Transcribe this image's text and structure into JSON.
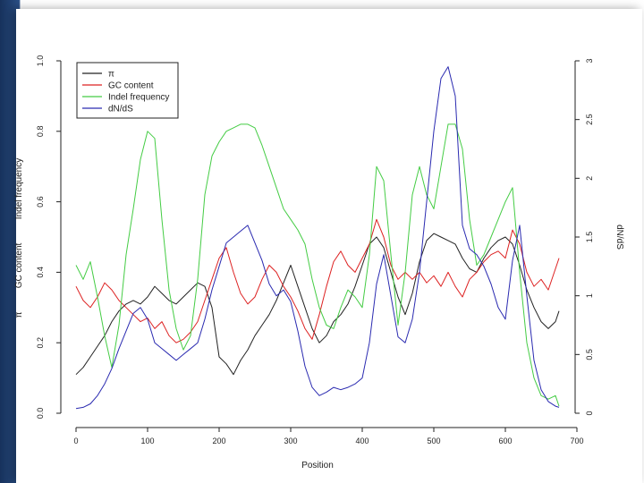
{
  "chart_data": {
    "type": "line",
    "title": "",
    "xlabel": "Position",
    "ylabel_left": [
      "π",
      "GC content",
      "Indel frequency"
    ],
    "ylabel_right": "dN/dS",
    "xlim": [
      0,
      700
    ],
    "ylim_left": [
      0,
      1
    ],
    "ylim_right": [
      0,
      3
    ],
    "x_ticks": [
      0,
      100,
      200,
      300,
      400,
      500,
      600,
      700
    ],
    "y_left_ticks": [
      "0.0",
      "0.2",
      "0.4",
      "0.6",
      "0.8",
      "1.0"
    ],
    "y_right_ticks": [
      "0",
      "0.5",
      "1",
      "1.5",
      "2",
      "2.5",
      "3"
    ],
    "legend_position": "top-left",
    "series": [
      {
        "name": "π",
        "axis": "left",
        "color": "#222222",
        "x": [
          0,
          10,
          20,
          30,
          40,
          50,
          60,
          70,
          80,
          90,
          100,
          110,
          120,
          130,
          140,
          150,
          160,
          170,
          180,
          190,
          200,
          210,
          220,
          230,
          240,
          250,
          260,
          270,
          280,
          290,
          300,
          310,
          320,
          330,
          340,
          350,
          360,
          370,
          380,
          390,
          400,
          410,
          420,
          430,
          440,
          450,
          460,
          470,
          480,
          490,
          500,
          510,
          520,
          530,
          540,
          550,
          560,
          570,
          580,
          590,
          600,
          610,
          620,
          630,
          640,
          650,
          660,
          670,
          675
        ],
        "y": [
          0.11,
          0.13,
          0.16,
          0.19,
          0.22,
          0.26,
          0.29,
          0.31,
          0.32,
          0.31,
          0.33,
          0.36,
          0.34,
          0.32,
          0.31,
          0.33,
          0.35,
          0.37,
          0.36,
          0.3,
          0.16,
          0.14,
          0.11,
          0.15,
          0.18,
          0.22,
          0.25,
          0.28,
          0.32,
          0.37,
          0.42,
          0.36,
          0.3,
          0.24,
          0.2,
          0.22,
          0.26,
          0.28,
          0.31,
          0.36,
          0.42,
          0.48,
          0.5,
          0.47,
          0.4,
          0.33,
          0.28,
          0.34,
          0.43,
          0.49,
          0.51,
          0.5,
          0.49,
          0.48,
          0.44,
          0.41,
          0.4,
          0.44,
          0.47,
          0.49,
          0.5,
          0.48,
          0.42,
          0.35,
          0.3,
          0.26,
          0.24,
          0.26,
          0.29
        ]
      },
      {
        "name": "GC content",
        "axis": "left",
        "color": "#dd2222",
        "x": [
          0,
          10,
          20,
          30,
          40,
          50,
          60,
          70,
          80,
          90,
          100,
          110,
          120,
          130,
          140,
          150,
          160,
          170,
          180,
          190,
          200,
          210,
          220,
          230,
          240,
          250,
          260,
          270,
          280,
          290,
          300,
          310,
          320,
          330,
          340,
          350,
          360,
          370,
          380,
          390,
          400,
          410,
          420,
          430,
          440,
          450,
          460,
          470,
          480,
          490,
          500,
          510,
          520,
          530,
          540,
          550,
          560,
          570,
          580,
          590,
          600,
          610,
          620,
          630,
          640,
          650,
          660,
          670,
          675
        ],
        "y": [
          0.36,
          0.32,
          0.3,
          0.33,
          0.37,
          0.35,
          0.32,
          0.3,
          0.28,
          0.26,
          0.27,
          0.24,
          0.26,
          0.22,
          0.2,
          0.21,
          0.23,
          0.26,
          0.32,
          0.38,
          0.44,
          0.47,
          0.4,
          0.34,
          0.31,
          0.33,
          0.38,
          0.42,
          0.4,
          0.36,
          0.33,
          0.29,
          0.24,
          0.21,
          0.28,
          0.36,
          0.43,
          0.46,
          0.42,
          0.4,
          0.44,
          0.48,
          0.55,
          0.5,
          0.42,
          0.38,
          0.4,
          0.38,
          0.4,
          0.37,
          0.39,
          0.36,
          0.4,
          0.36,
          0.33,
          0.38,
          0.4,
          0.43,
          0.45,
          0.46,
          0.44,
          0.52,
          0.48,
          0.4,
          0.36,
          0.38,
          0.35,
          0.41,
          0.44
        ]
      },
      {
        "name": "Indel frequency",
        "axis": "left",
        "color": "#44cc44",
        "x": [
          0,
          10,
          20,
          30,
          40,
          50,
          60,
          70,
          80,
          90,
          100,
          110,
          120,
          130,
          140,
          150,
          160,
          170,
          180,
          190,
          200,
          210,
          220,
          230,
          240,
          250,
          260,
          270,
          280,
          290,
          300,
          310,
          320,
          330,
          340,
          350,
          360,
          370,
          380,
          390,
          400,
          410,
          420,
          430,
          440,
          450,
          460,
          470,
          480,
          490,
          500,
          510,
          520,
          530,
          540,
          550,
          560,
          570,
          580,
          590,
          600,
          610,
          620,
          630,
          640,
          650,
          660,
          670,
          675
        ],
        "y": [
          0.42,
          0.38,
          0.43,
          0.33,
          0.22,
          0.13,
          0.25,
          0.45,
          0.58,
          0.72,
          0.8,
          0.78,
          0.55,
          0.35,
          0.24,
          0.18,
          0.22,
          0.38,
          0.62,
          0.73,
          0.77,
          0.8,
          0.81,
          0.82,
          0.82,
          0.81,
          0.76,
          0.7,
          0.64,
          0.58,
          0.55,
          0.52,
          0.48,
          0.38,
          0.3,
          0.25,
          0.24,
          0.3,
          0.35,
          0.33,
          0.3,
          0.45,
          0.7,
          0.66,
          0.45,
          0.25,
          0.4,
          0.62,
          0.7,
          0.62,
          0.58,
          0.7,
          0.82,
          0.82,
          0.75,
          0.55,
          0.42,
          0.45,
          0.5,
          0.55,
          0.6,
          0.64,
          0.4,
          0.2,
          0.1,
          0.05,
          0.04,
          0.05,
          0.02
        ]
      },
      {
        "name": "dN/dS",
        "axis": "right",
        "color": "#2a2ab0",
        "x": [
          0,
          10,
          20,
          30,
          40,
          50,
          60,
          70,
          80,
          90,
          100,
          110,
          120,
          130,
          140,
          150,
          160,
          170,
          180,
          190,
          200,
          210,
          220,
          230,
          240,
          250,
          260,
          270,
          280,
          290,
          300,
          310,
          320,
          330,
          340,
          350,
          360,
          370,
          380,
          390,
          400,
          410,
          420,
          430,
          440,
          450,
          460,
          470,
          480,
          490,
          500,
          510,
          520,
          530,
          540,
          550,
          560,
          570,
          580,
          590,
          600,
          610,
          620,
          630,
          640,
          650,
          660,
          670,
          675
        ],
        "y": [
          0.04,
          0.05,
          0.08,
          0.15,
          0.25,
          0.38,
          0.55,
          0.7,
          0.85,
          0.9,
          0.8,
          0.6,
          0.55,
          0.5,
          0.45,
          0.5,
          0.55,
          0.6,
          0.8,
          1.05,
          1.25,
          1.45,
          1.5,
          1.55,
          1.6,
          1.45,
          1.3,
          1.1,
          1.0,
          1.05,
          0.95,
          0.7,
          0.4,
          0.22,
          0.15,
          0.18,
          0.22,
          0.2,
          0.22,
          0.25,
          0.3,
          0.6,
          1.1,
          1.35,
          1.0,
          0.65,
          0.6,
          0.8,
          1.2,
          1.8,
          2.4,
          2.85,
          2.95,
          2.7,
          1.6,
          1.4,
          1.35,
          1.25,
          1.1,
          0.9,
          0.8,
          1.3,
          1.6,
          1.0,
          0.45,
          0.2,
          0.1,
          0.06,
          0.05
        ]
      }
    ]
  }
}
